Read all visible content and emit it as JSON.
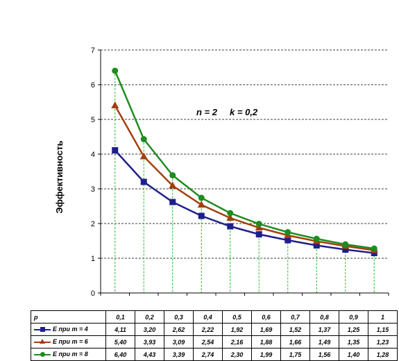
{
  "chart_data": {
    "type": "line",
    "ylabel": "Эффективность",
    "xlabel": "p",
    "annotation": "n = 2     k = 0,2",
    "ylim": [
      0,
      7
    ],
    "yticks": [
      "0",
      "1",
      "2",
      "3",
      "4",
      "5",
      "6",
      "7"
    ],
    "grid": "horizontal dashed",
    "drop_lines": "green dashed vertical",
    "categories": [
      "0,1",
      "0,2",
      "0,3",
      "0,4",
      "0,5",
      "0,6",
      "0,7",
      "0,8",
      "0,9",
      "1"
    ],
    "x": [
      0.1,
      0.2,
      0.3,
      0.4,
      0.5,
      0.6,
      0.7,
      0.8,
      0.9,
      1.0
    ],
    "series": [
      {
        "name": "E при m = 4",
        "color": "#1F1F8C",
        "marker": "square",
        "values": [
          4.11,
          3.2,
          2.62,
          2.22,
          1.92,
          1.69,
          1.52,
          1.37,
          1.25,
          1.15
        ],
        "labels": [
          "4,11",
          "3,20",
          "2,62",
          "2,22",
          "1,92",
          "1,69",
          "1,52",
          "1,37",
          "1,25",
          "1,15"
        ]
      },
      {
        "name": "E при m = 6",
        "color": "#A0410D",
        "marker": "triangle",
        "values": [
          5.4,
          3.93,
          3.09,
          2.54,
          2.16,
          1.88,
          1.66,
          1.49,
          1.35,
          1.23
        ],
        "labels": [
          "5,40",
          "3,93",
          "3,09",
          "2,54",
          "2,16",
          "1,88",
          "1,66",
          "1,49",
          "1,35",
          "1,23"
        ]
      },
      {
        "name": "E при m = 8",
        "color": "#1E8C1E",
        "marker": "circle",
        "values": [
          6.4,
          4.43,
          3.39,
          2.74,
          2.3,
          1.99,
          1.75,
          1.56,
          1.4,
          1.28
        ],
        "labels": [
          "6,40",
          "4,43",
          "3,39",
          "2,74",
          "2,30",
          "1,99",
          "1,75",
          "1,56",
          "1,40",
          "1,28"
        ]
      }
    ]
  }
}
